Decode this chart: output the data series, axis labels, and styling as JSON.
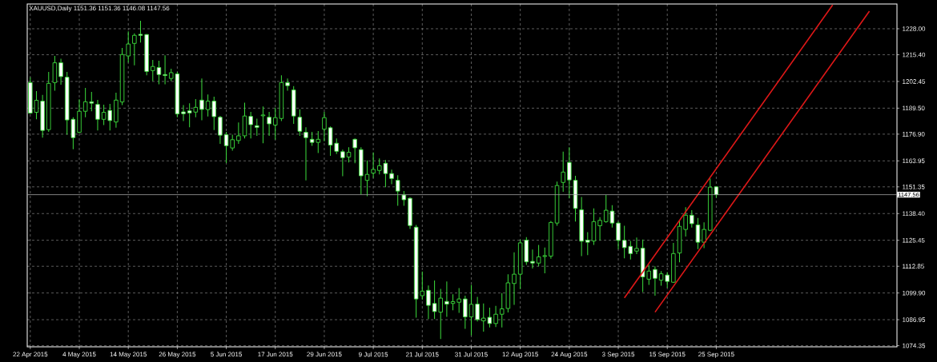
{
  "chart_data": {
    "type": "candlestick",
    "title": "XAUUSD,Daily  1151.36 1151.36 1146.08 1147.56",
    "categories": [
      "22 Apr 2015",
      null,
      null,
      null,
      null,
      null,
      null,
      null,
      "4 May 2015",
      null,
      null,
      null,
      null,
      null,
      null,
      null,
      "14 May 2015",
      null,
      null,
      null,
      null,
      null,
      null,
      null,
      "26 May 2015",
      null,
      null,
      null,
      null,
      null,
      null,
      null,
      "5 Jun 2015",
      null,
      null,
      null,
      null,
      null,
      null,
      null,
      "17 Jun 2015",
      null,
      null,
      null,
      null,
      null,
      null,
      null,
      "29 Jun 2015",
      null,
      null,
      null,
      null,
      null,
      null,
      null,
      "9 Jul 2015",
      null,
      null,
      null,
      null,
      null,
      null,
      null,
      "21 Jul 2015",
      null,
      null,
      null,
      null,
      null,
      null,
      null,
      "31 Jul 2015",
      null,
      null,
      null,
      null,
      null,
      null,
      null,
      "12 Aug 2015",
      null,
      null,
      null,
      null,
      null,
      null,
      null,
      "24 Aug 2015",
      null,
      null,
      null,
      null,
      null,
      null,
      null,
      "3 Sep 2015",
      null,
      null,
      null,
      null,
      null,
      null,
      null,
      "15 Sep 2015",
      null,
      null,
      null,
      null,
      null,
      null,
      null,
      "25 Sep 2015",
      null,
      null,
      null,
      null,
      null,
      null,
      null,
      null,
      null,
      null,
      null,
      null,
      null,
      null,
      null,
      null,
      null,
      null,
      null,
      null,
      null,
      null,
      null,
      null,
      null,
      null,
      null,
      null,
      null
    ],
    "ohlc": [
      [
        1201.9,
        1204.5,
        1186.7,
        1187.1
      ],
      [
        1187.5,
        1197.8,
        1184.1,
        1193.3
      ],
      [
        1192.9,
        1195.9,
        1175.2,
        1178.7
      ],
      [
        1179.1,
        1207.1,
        1178.0,
        1201.5
      ],
      [
        1201.9,
        1214.8,
        1198.0,
        1211.5
      ],
      [
        1211.5,
        1213.5,
        1200.9,
        1204.8
      ],
      [
        1204.5,
        1207.1,
        1176.7,
        1183.8
      ],
      [
        1184.1,
        1185.1,
        1169.6,
        1175.2
      ],
      [
        1177.8,
        1193.8,
        1177.4,
        1188.0
      ],
      [
        1188.0,
        1199.3,
        1185.1,
        1192.6
      ],
      [
        1192.6,
        1197.4,
        1188.0,
        1191.9
      ],
      [
        1191.3,
        1193.5,
        1178.7,
        1184.1
      ],
      [
        1184.1,
        1191.2,
        1181.3,
        1187.5
      ],
      [
        1188.4,
        1191.6,
        1178.7,
        1183.5
      ],
      [
        1182.8,
        1197.0,
        1180.0,
        1193.4
      ],
      [
        1192.5,
        1218.7,
        1191.0,
        1215.5
      ],
      [
        1214.8,
        1226.7,
        1211.6,
        1220.6
      ],
      [
        1220.9,
        1225.8,
        1210.3,
        1224.8
      ],
      [
        1225.3,
        1231.9,
        1221.3,
        1224.8
      ],
      [
        1225.2,
        1225.4,
        1205.4,
        1207.3
      ],
      [
        1207.7,
        1212.9,
        1202.6,
        1209.7
      ],
      [
        1209.2,
        1212.5,
        1201.1,
        1205.8
      ],
      [
        1205.8,
        1215.1,
        1201.1,
        1205.3
      ],
      [
        1203.9,
        1208.6,
        1202.6,
        1206.7
      ],
      [
        1206.1,
        1207.1,
        1185.1,
        1186.7
      ],
      [
        1187.7,
        1191.0,
        1183.2,
        1186.8
      ],
      [
        1188.2,
        1191.9,
        1180.2,
        1187.2
      ],
      [
        1187.6,
        1193.9,
        1185.1,
        1189.9
      ],
      [
        1193.4,
        1203.9,
        1183.6,
        1188.9
      ],
      [
        1188.8,
        1196.1,
        1185.5,
        1192.9
      ],
      [
        1192.9,
        1195.1,
        1178.9,
        1185.4
      ],
      [
        1185.1,
        1185.8,
        1172.2,
        1176.4
      ],
      [
        1176.6,
        1178.0,
        1162.9,
        1171.3
      ],
      [
        1170.2,
        1176.7,
        1168.9,
        1174.2
      ],
      [
        1173.8,
        1182.6,
        1172.2,
        1176.1
      ],
      [
        1176.1,
        1192.2,
        1174.8,
        1185.7
      ],
      [
        1185.5,
        1187.7,
        1174.8,
        1181.5
      ],
      [
        1181.0,
        1184.4,
        1176.1,
        1180.2
      ],
      [
        1185.8,
        1190.3,
        1172.5,
        1186.2
      ],
      [
        1185.1,
        1187.7,
        1176.1,
        1181.9
      ],
      [
        1181.3,
        1189.7,
        1174.2,
        1184.9
      ],
      [
        1184.5,
        1205.4,
        1183.2,
        1201.9
      ],
      [
        1201.9,
        1203.9,
        1198.0,
        1200.4
      ],
      [
        1198.3,
        1200.2,
        1181.9,
        1185.7
      ],
      [
        1185.1,
        1189.0,
        1176.1,
        1178.3
      ],
      [
        1177.8,
        1180.2,
        1154.5,
        1175.2
      ],
      [
        1174.4,
        1178.0,
        1171.2,
        1172.9
      ],
      [
        1172.9,
        1178.4,
        1167.7,
        1174.4
      ],
      [
        1179.3,
        1187.7,
        1173.5,
        1184.9
      ],
      [
        1180.0,
        1180.6,
        1166.4,
        1171.6
      ],
      [
        1172.5,
        1174.8,
        1167.3,
        1168.6
      ],
      [
        1168.4,
        1169.4,
        1156.5,
        1165.5
      ],
      [
        1165.8,
        1170.6,
        1163.2,
        1168.1
      ],
      [
        1174.4,
        1174.8,
        1162.8,
        1170.3
      ],
      [
        1169.4,
        1170.6,
        1147.7,
        1156.7
      ],
      [
        1154.5,
        1164.2,
        1146.8,
        1157.4
      ],
      [
        1158.0,
        1168.0,
        1155.7,
        1159.8
      ],
      [
        1159.3,
        1165.1,
        1157.4,
        1161.6
      ],
      [
        1162.8,
        1164.4,
        1151.2,
        1157.8
      ],
      [
        1157.8,
        1159.7,
        1152.6,
        1155.4
      ],
      [
        1154.5,
        1157.0,
        1142.2,
        1149.3
      ],
      [
        1147.4,
        1149.3,
        1142.2,
        1145.1
      ],
      [
        1145.8,
        1146.2,
        1130.9,
        1132.6
      ],
      [
        1131.8,
        1132.9,
        1087.9,
        1097.0
      ],
      [
        1098.6,
        1110.3,
        1096.7,
        1100.8
      ],
      [
        1101.2,
        1103.5,
        1087.3,
        1093.9
      ],
      [
        1094.8,
        1106.0,
        1087.3,
        1090.9
      ],
      [
        1090.6,
        1101.9,
        1077.6,
        1097.4
      ],
      [
        1095.8,
        1105.5,
        1088.3,
        1094.5
      ],
      [
        1094.8,
        1099.3,
        1091.5,
        1095.7
      ],
      [
        1095.4,
        1102.3,
        1090.3,
        1097.0
      ],
      [
        1097.0,
        1098.6,
        1082.5,
        1088.3
      ],
      [
        1088.3,
        1103.8,
        1079.3,
        1094.4
      ],
      [
        1094.5,
        1098.0,
        1086.1,
        1087.0
      ],
      [
        1086.4,
        1094.8,
        1081.2,
        1087.7
      ],
      [
        1088.1,
        1092.8,
        1083.2,
        1085.1
      ],
      [
        1085.1,
        1093.7,
        1083.4,
        1089.6
      ],
      [
        1089.6,
        1099.9,
        1083.2,
        1092.2
      ],
      [
        1092.4,
        1109.0,
        1090.5,
        1104.8
      ],
      [
        1104.5,
        1119.6,
        1094.1,
        1109.0
      ],
      [
        1109.0,
        1125.8,
        1101.9,
        1124.2
      ],
      [
        1125.5,
        1127.0,
        1113.5,
        1115.0
      ],
      [
        1115.2,
        1121.0,
        1111.8,
        1114.4
      ],
      [
        1114.4,
        1123.2,
        1112.8,
        1117.4
      ],
      [
        1117.6,
        1121.9,
        1109.4,
        1118.0
      ],
      [
        1117.8,
        1134.8,
        1116.5,
        1134.1
      ],
      [
        1133.8,
        1153.9,
        1132.5,
        1152.0
      ],
      [
        1153.5,
        1168.4,
        1149.0,
        1158.5
      ],
      [
        1163.2,
        1170.6,
        1145.8,
        1154.7
      ],
      [
        1154.5,
        1156.7,
        1134.5,
        1140.9
      ],
      [
        1140.2,
        1146.4,
        1117.8,
        1125.0
      ],
      [
        1125.5,
        1129.4,
        1118.3,
        1124.5
      ],
      [
        1125.1,
        1140.9,
        1123.2,
        1134.5
      ],
      [
        1132.5,
        1136.7,
        1125.4,
        1135.1
      ],
      [
        1134.5,
        1147.4,
        1133.9,
        1140.0
      ],
      [
        1139.6,
        1142.5,
        1131.6,
        1133.8
      ],
      [
        1133.8,
        1134.5,
        1121.2,
        1125.4
      ],
      [
        1125.4,
        1132.5,
        1116.7,
        1121.9
      ],
      [
        1122.5,
        1125.1,
        1116.1,
        1119.0
      ],
      [
        1120.2,
        1126.8,
        1118.7,
        1121.5
      ],
      [
        1121.6,
        1125.8,
        1100.3,
        1107.7
      ],
      [
        1106.6,
        1113.5,
        1103.8,
        1110.5
      ],
      [
        1111.3,
        1112.8,
        1098.6,
        1107.0
      ],
      [
        1106.1,
        1110.5,
        1103.4,
        1109.2
      ],
      [
        1108.6,
        1110.0,
        1102.5,
        1105.5
      ],
      [
        1105.1,
        1124.2,
        1104.8,
        1119.0
      ],
      [
        1119.3,
        1135.4,
        1114.8,
        1132.2
      ],
      [
        1130.7,
        1141.5,
        1127.3,
        1137.6
      ],
      [
        1137.6,
        1140.0,
        1131.6,
        1133.5
      ],
      [
        1132.9,
        1136.3,
        1121.2,
        1124.5
      ],
      [
        1124.5,
        1134.1,
        1121.6,
        1130.7
      ],
      [
        1130.3,
        1155.4,
        1129.9,
        1151.2
      ],
      [
        1151.36,
        1151.36,
        1146.08,
        1147.56
      ],
      null,
      null,
      null,
      null,
      null,
      null,
      null,
      null,
      null,
      null,
      null,
      null,
      null,
      null,
      null,
      null,
      null,
      null,
      null,
      null,
      null,
      null,
      null,
      null,
      null,
      null,
      null,
      null,
      null
    ],
    "series": [
      {
        "type": "line",
        "color": "#e01818",
        "values": [
          null,
          null,
          null,
          null,
          null,
          null,
          null,
          null,
          null,
          null,
          null,
          null,
          null,
          null,
          null,
          null,
          null,
          null,
          null,
          null,
          null,
          null,
          null,
          null,
          null,
          null,
          null,
          null,
          null,
          null,
          null,
          null,
          null,
          null,
          null,
          null,
          null,
          null,
          null,
          null,
          null,
          null,
          null,
          null,
          null,
          null,
          null,
          null,
          null,
          null,
          null,
          null,
          null,
          null,
          null,
          null,
          null,
          null,
          null,
          null,
          null,
          null,
          null,
          null,
          null,
          null,
          null,
          null,
          null,
          null,
          null,
          null,
          null,
          null,
          null,
          null,
          null,
          null,
          null,
          null,
          null,
          null,
          null,
          null,
          null,
          null,
          null,
          null,
          null,
          null,
          null,
          null,
          null,
          null,
          null,
          null,
          null,
          1097.5,
          null,
          null,
          null,
          null,
          null,
          null,
          null,
          null,
          null,
          null,
          null,
          null,
          null,
          null,
          null,
          null,
          null,
          null,
          null,
          null,
          null,
          null,
          null,
          null,
          null,
          null,
          null,
          null,
          null,
          null,
          null,
          null,
          null,
          1239.5,
          null,
          null,
          null,
          null,
          null,
          null,
          null,
          null,
          null,
          null
        ]
      },
      {
        "type": "line",
        "color": "#e01818",
        "values": [
          null,
          null,
          null,
          null,
          null,
          null,
          null,
          null,
          null,
          null,
          null,
          null,
          null,
          null,
          null,
          null,
          null,
          null,
          null,
          null,
          null,
          null,
          null,
          null,
          null,
          null,
          null,
          null,
          null,
          null,
          null,
          null,
          null,
          null,
          null,
          null,
          null,
          null,
          null,
          null,
          null,
          null,
          null,
          null,
          null,
          null,
          null,
          null,
          null,
          null,
          null,
          null,
          null,
          null,
          null,
          null,
          null,
          null,
          null,
          null,
          null,
          null,
          null,
          null,
          null,
          null,
          null,
          null,
          null,
          null,
          null,
          null,
          null,
          null,
          null,
          null,
          null,
          null,
          null,
          null,
          null,
          null,
          null,
          null,
          null,
          null,
          null,
          null,
          null,
          null,
          null,
          null,
          null,
          null,
          null,
          null,
          null,
          null,
          null,
          null,
          null,
          null,
          1090.6,
          null,
          null,
          null,
          null,
          null,
          null,
          null,
          null,
          null,
          null,
          null,
          null,
          null,
          null,
          null,
          null,
          null,
          null,
          null,
          null,
          null,
          null,
          null,
          null,
          null,
          null,
          null,
          null,
          null,
          null,
          null,
          null,
          null,
          null,
          1236.5,
          null,
          null,
          null,
          null
        ]
      }
    ],
    "ylim": [
      1073.8,
      1240.0
    ],
    "yticks": [
      {
        "value": 1074.35,
        "label": "1074.35"
      },
      1086.95,
      {
        "value": 1099.9,
        "label": "1099.90"
      },
      1112.85,
      1125.45,
      {
        "value": 1138.4,
        "label": "1138.40"
      },
      1151.35,
      1163.95,
      {
        "value": 1176.9,
        "label": "1176.90"
      },
      {
        "value": 1189.5,
        "label": "1189.50"
      },
      1202.45,
      {
        "value": 1215.4,
        "label": "1215.40"
      },
      {
        "value": 1228.0,
        "label": "1228.00"
      }
    ],
    "ref_lines": [
      {
        "axis": "y",
        "value": 1147.56,
        "label": "1147.56",
        "color": "#a0a0a0"
      }
    ],
    "grid": true
  }
}
